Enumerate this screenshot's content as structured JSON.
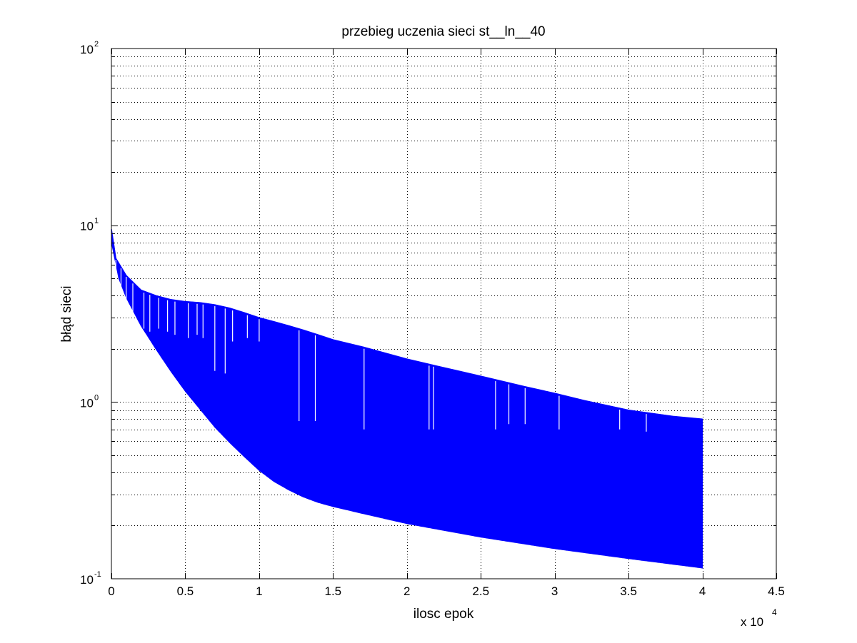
{
  "chart_data": {
    "type": "area",
    "title": "przebieg uczenia sieci st__ln__40",
    "xlabel": "ilosc epok",
    "ylabel": "błąd sieci",
    "x_multiplier_label": "x 10",
    "x_multiplier_exponent": "4",
    "x_scale": "linear",
    "y_scale": "log",
    "xlim": [
      0,
      45000
    ],
    "ylim": [
      0.1,
      100
    ],
    "grid": true,
    "series_color": "#0000ff",
    "x_ticks": [
      {
        "value": 0,
        "label": "0"
      },
      {
        "value": 5000,
        "label": "0.5"
      },
      {
        "value": 10000,
        "label": "1"
      },
      {
        "value": 15000,
        "label": "1.5"
      },
      {
        "value": 20000,
        "label": "2"
      },
      {
        "value": 25000,
        "label": "2.5"
      },
      {
        "value": 30000,
        "label": "3"
      },
      {
        "value": 35000,
        "label": "3.5"
      },
      {
        "value": 40000,
        "label": "4"
      },
      {
        "value": 45000,
        "label": "4.5"
      }
    ],
    "y_ticks": [
      {
        "value": 0.1,
        "base": "10",
        "exp": "-1"
      },
      {
        "value": 1,
        "base": "10",
        "exp": "0"
      },
      {
        "value": 10,
        "base": "10",
        "exp": "1"
      },
      {
        "value": 100,
        "base": "10",
        "exp": "2"
      }
    ],
    "series": [
      {
        "role": "lower_envelope",
        "x": [
          0,
          500,
          1000,
          2000,
          3000,
          4000,
          5000,
          6000,
          7000,
          8000,
          9000,
          10000,
          11000,
          12000,
          13000,
          14000,
          15000,
          17000,
          20000,
          25000,
          30000,
          35000,
          40000
        ],
        "y": [
          8.0,
          5.0,
          3.9,
          2.7,
          2.0,
          1.5,
          1.15,
          0.91,
          0.72,
          0.59,
          0.49,
          0.41,
          0.355,
          0.318,
          0.29,
          0.27,
          0.256,
          0.234,
          0.205,
          0.172,
          0.148,
          0.13,
          0.115
        ]
      },
      {
        "role": "upper_envelope",
        "x": [
          0,
          300,
          1000,
          2000,
          3000,
          4000,
          5000,
          6000,
          7000,
          8000,
          9000,
          10000,
          11000,
          12000,
          13000,
          14000,
          15000,
          17000,
          20000,
          22000,
          25000,
          28000,
          30000,
          32000,
          35000,
          38000,
          40000
        ],
        "y": [
          9.5,
          6.5,
          5.2,
          4.3,
          4.0,
          3.8,
          3.7,
          3.65,
          3.55,
          3.4,
          3.2,
          3.0,
          2.85,
          2.7,
          2.55,
          2.4,
          2.25,
          2.05,
          1.75,
          1.6,
          1.4,
          1.22,
          1.12,
          1.02,
          0.9,
          0.83,
          0.8
        ]
      }
    ],
    "downward_spikes": [
      {
        "x": 300,
        "y": 3.0
      },
      {
        "x": 650,
        "y": 3.3
      },
      {
        "x": 1000,
        "y": 3.2
      },
      {
        "x": 1450,
        "y": 2.9
      },
      {
        "x": 2200,
        "y": 2.6
      },
      {
        "x": 2600,
        "y": 2.5
      },
      {
        "x": 3200,
        "y": 2.6
      },
      {
        "x": 3800,
        "y": 2.5
      },
      {
        "x": 4300,
        "y": 2.4
      },
      {
        "x": 5200,
        "y": 2.3
      },
      {
        "x": 5800,
        "y": 2.4
      },
      {
        "x": 6200,
        "y": 2.3
      },
      {
        "x": 7000,
        "y": 1.5
      },
      {
        "x": 7700,
        "y": 1.45
      },
      {
        "x": 8200,
        "y": 2.2
      },
      {
        "x": 9200,
        "y": 2.3
      },
      {
        "x": 10000,
        "y": 2.2
      },
      {
        "x": 12700,
        "y": 0.78
      },
      {
        "x": 13800,
        "y": 0.78
      },
      {
        "x": 17100,
        "y": 0.7
      },
      {
        "x": 21500,
        "y": 0.7
      },
      {
        "x": 21800,
        "y": 0.7
      },
      {
        "x": 26000,
        "y": 0.7
      },
      {
        "x": 26900,
        "y": 0.75
      },
      {
        "x": 28000,
        "y": 0.75
      },
      {
        "x": 30300,
        "y": 0.7
      },
      {
        "x": 34400,
        "y": 0.7
      },
      {
        "x": 36200,
        "y": 0.68
      }
    ]
  }
}
